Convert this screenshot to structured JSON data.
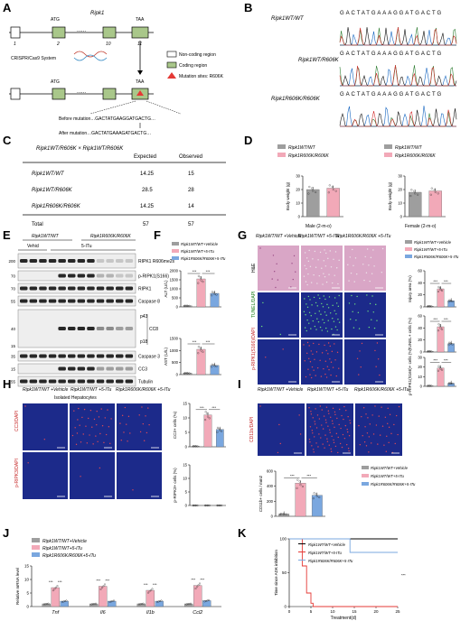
{
  "colors": {
    "wt_vehicle": "#9e9e9e",
    "wt_itu": "#f2a9b8",
    "mut_itu": "#7aa7df",
    "mutation_red": "#e53935",
    "micro_blue": "#1c2a8a",
    "he_pink": "#d9a6c6"
  },
  "panel_letters": [
    "A",
    "B",
    "C",
    "D",
    "E",
    "F",
    "G",
    "H",
    "I",
    "J",
    "K"
  ],
  "panel_a": {
    "gene": "Ripk1",
    "atg": "ATG",
    "taa": "TAA",
    "dots": "......",
    "exons": [
      "1",
      "2",
      "10",
      "11"
    ],
    "crispr": "CRISPR/Cas9 System",
    "legend": [
      "Non-coding region",
      "Coding region",
      "Mutation sites: R606K"
    ],
    "before": "Before mutation…GACTATGAAGGATGACTG…",
    "after": "After mutation…GACTATGAAAGATGACTG…"
  },
  "panel_b": {
    "genotypes": [
      "Ripk1WT/WT",
      "Ripk1WT/R606K",
      "Ripk1R606K/R606K"
    ],
    "sequence": "GACTATGAAAGGATGACTG"
  },
  "panel_c": {
    "cross": "Ripk1WT/R606K × Ripk1WT/R606K",
    "headers": [
      "Expected",
      "Observed"
    ],
    "rows": [
      {
        "genotype": "Ripk1WT/WT",
        "expected": "14.25",
        "observed": "15"
      },
      {
        "genotype": "Ripk1WT/R606K",
        "expected": "28.5",
        "observed": "28"
      },
      {
        "genotype": "Ripk1R606K/R606K",
        "expected": "14.25",
        "observed": "14"
      },
      {
        "genotype": "Total",
        "expected": "57",
        "observed": "57"
      }
    ]
  },
  "panel_d": {
    "legend": [
      "Ripk1WT/WT",
      "Ripk1R606K/R606K"
    ],
    "ylabel": "Body weight (g)",
    "yticks": [
      "0",
      "10",
      "20",
      "30"
    ],
    "male": {
      "label": "Male (2-m-o)",
      "values": [
        20,
        21
      ]
    },
    "female": {
      "label": "Female (2-m-o)",
      "values": [
        18,
        19
      ]
    }
  },
  "panel_e": {
    "genotypes": [
      "Ripk1WT/WT",
      "Ripk1R606K/R606K"
    ],
    "treatments": [
      "Vehicl",
      "5-ITu"
    ],
    "mw": [
      "200",
      "70",
      "70",
      "55",
      "40",
      "15",
      "35",
      "15",
      "55"
    ],
    "bands": [
      "RIPK1 R606me2s",
      "p-RIPK1(S166)",
      "RIPK1",
      "Caspase 8",
      "p43",
      "p18",
      "CC8",
      "Caspase 3",
      "CC3",
      "Tubulin"
    ],
    "footer": "Isolated Hepatocytes"
  },
  "panel_f": {
    "legend": [
      "Ripk1WT/WT+Vehicle",
      "Ripk1WT/WT+5-ITu",
      "Ripk1R606K/R606K+5-ITu"
    ],
    "alt": {
      "ylabel": "ALT (U/L)",
      "yticks": [
        "0",
        "500",
        "1000",
        "1500",
        "2000"
      ],
      "ymax": 2000,
      "values": [
        60,
        1550,
        750
      ]
    },
    "ast": {
      "ylabel": "AST (U/L)",
      "yticks": [
        "0",
        "500",
        "1000",
        "1500"
      ],
      "ymax": 1500,
      "values": [
        60,
        1050,
        380
      ]
    },
    "sig": "***"
  },
  "panel_g": {
    "columns": [
      "Ripk1WT/WT +Vehicle",
      "Ripk1WT/WT +5-ITu",
      "Ripk1R606K/R606K +5-ITu"
    ],
    "rows": [
      "H&E",
      "TUNEL/DAPI",
      "p-RIPK1(S166)/DAPI"
    ],
    "legend": [
      "Ripk1WT/WT+Vehicle",
      "Ripk1WT/WT+5-ITu",
      "Ripk1R606K/R606K+5-ITu"
    ],
    "injury": {
      "ylabel": "Injury area (%)",
      "yticks": [
        "0",
        "20",
        "40",
        "60"
      ],
      "ymax": 60,
      "values": [
        1,
        30,
        10
      ]
    },
    "tunel": {
      "ylabel": "TUNEL+ cells (%)",
      "yticks": [
        "0",
        "20",
        "40",
        "60"
      ],
      "ymax": 60,
      "values": [
        1,
        42,
        14
      ]
    },
    "pripk1": {
      "ylabel": "p-RIPK1(S166)+ cells (%)",
      "yticks": [
        "0",
        "10",
        "20",
        "30"
      ],
      "ymax": 30,
      "values": [
        0.5,
        19,
        3
      ]
    },
    "sig": "***"
  },
  "panel_h": {
    "columns": [
      "Ripk1WT/WT +Vehicle",
      "Ripk1WT/WT +5-ITu",
      "Ripk1R606K/R606K +5-ITu"
    ],
    "rows": [
      "CC3/DAPI",
      "p-RIPK3/DAPI"
    ],
    "cc3": {
      "ylabel": "CC3+ cells (%)",
      "yticks": [
        "0",
        "5",
        "10",
        "15"
      ],
      "ymax": 15,
      "values": [
        0.2,
        11,
        6
      ]
    },
    "pripk3": {
      "ylabel": "p-RIPK3+ cells (%)",
      "yticks": [
        "0",
        "5",
        "10",
        "15"
      ],
      "ymax": 15,
      "values": [
        0,
        0,
        0
      ]
    },
    "sig": "***"
  },
  "panel_i": {
    "columns": [
      "Ripk1WT/WT +Vehicle",
      "Ripk1WT/WT +5-ITu",
      "Ripk1R606K/R606K +5-ITu"
    ],
    "row": "CD11b/DAPI",
    "legend": [
      "Ripk1WT/WT+Vehicle",
      "Ripk1WT/WT+5-ITu",
      "Ripk1R606K/R606K+5-ITu"
    ],
    "cd11b": {
      "ylabel": "CD11b+ cells / mm2",
      "yticks": [
        "0",
        "200",
        "400",
        "600"
      ],
      "ymax": 600,
      "values": [
        30,
        440,
        280
      ]
    },
    "sig": "***"
  },
  "panel_j": {
    "legend": [
      "Ripk1WT/WT+Vehicle",
      "Ripk1WT/WT+5-ITu",
      "Ripk1R606K/R606K+5-ITu"
    ],
    "ylabel": "Relative mRNA level",
    "yticks": [
      "0",
      "5",
      "10",
      "15"
    ],
    "ymax": 15,
    "genes": [
      "Tnf",
      "Il6",
      "Il1b",
      "Ccl2"
    ],
    "values": [
      [
        1,
        7,
        2
      ],
      [
        1,
        7.5,
        2
      ],
      [
        1,
        6,
        2
      ],
      [
        1,
        7.8,
        2.2
      ]
    ],
    "sig": "***"
  },
  "panel_k": {
    "legend": [
      "Ripk1WT/WT+Vehicle",
      "Ripk1WT/WT+5-ITu",
      "Ripk1R606K/R606K+5-ITu"
    ],
    "ylabel": "Time since ADK inhibition",
    "xlabel": "Treatment(d)",
    "xticks": [
      "0",
      "5",
      "10",
      "15",
      "20",
      "25"
    ],
    "xmax": 25,
    "yticks": [
      "0",
      "50",
      "100"
    ],
    "series": [
      {
        "x": [
          0,
          25
        ],
        "y": [
          100,
          100
        ]
      },
      {
        "x": [
          0,
          3,
          3,
          4,
          4,
          5,
          5,
          5.5,
          5.5,
          25
        ],
        "y": [
          100,
          100,
          60,
          60,
          20,
          20,
          5,
          5,
          0,
          0
        ]
      },
      {
        "x": [
          0,
          14,
          14,
          25
        ],
        "y": [
          100,
          100,
          80,
          80
        ]
      }
    ],
    "sig": "***"
  }
}
